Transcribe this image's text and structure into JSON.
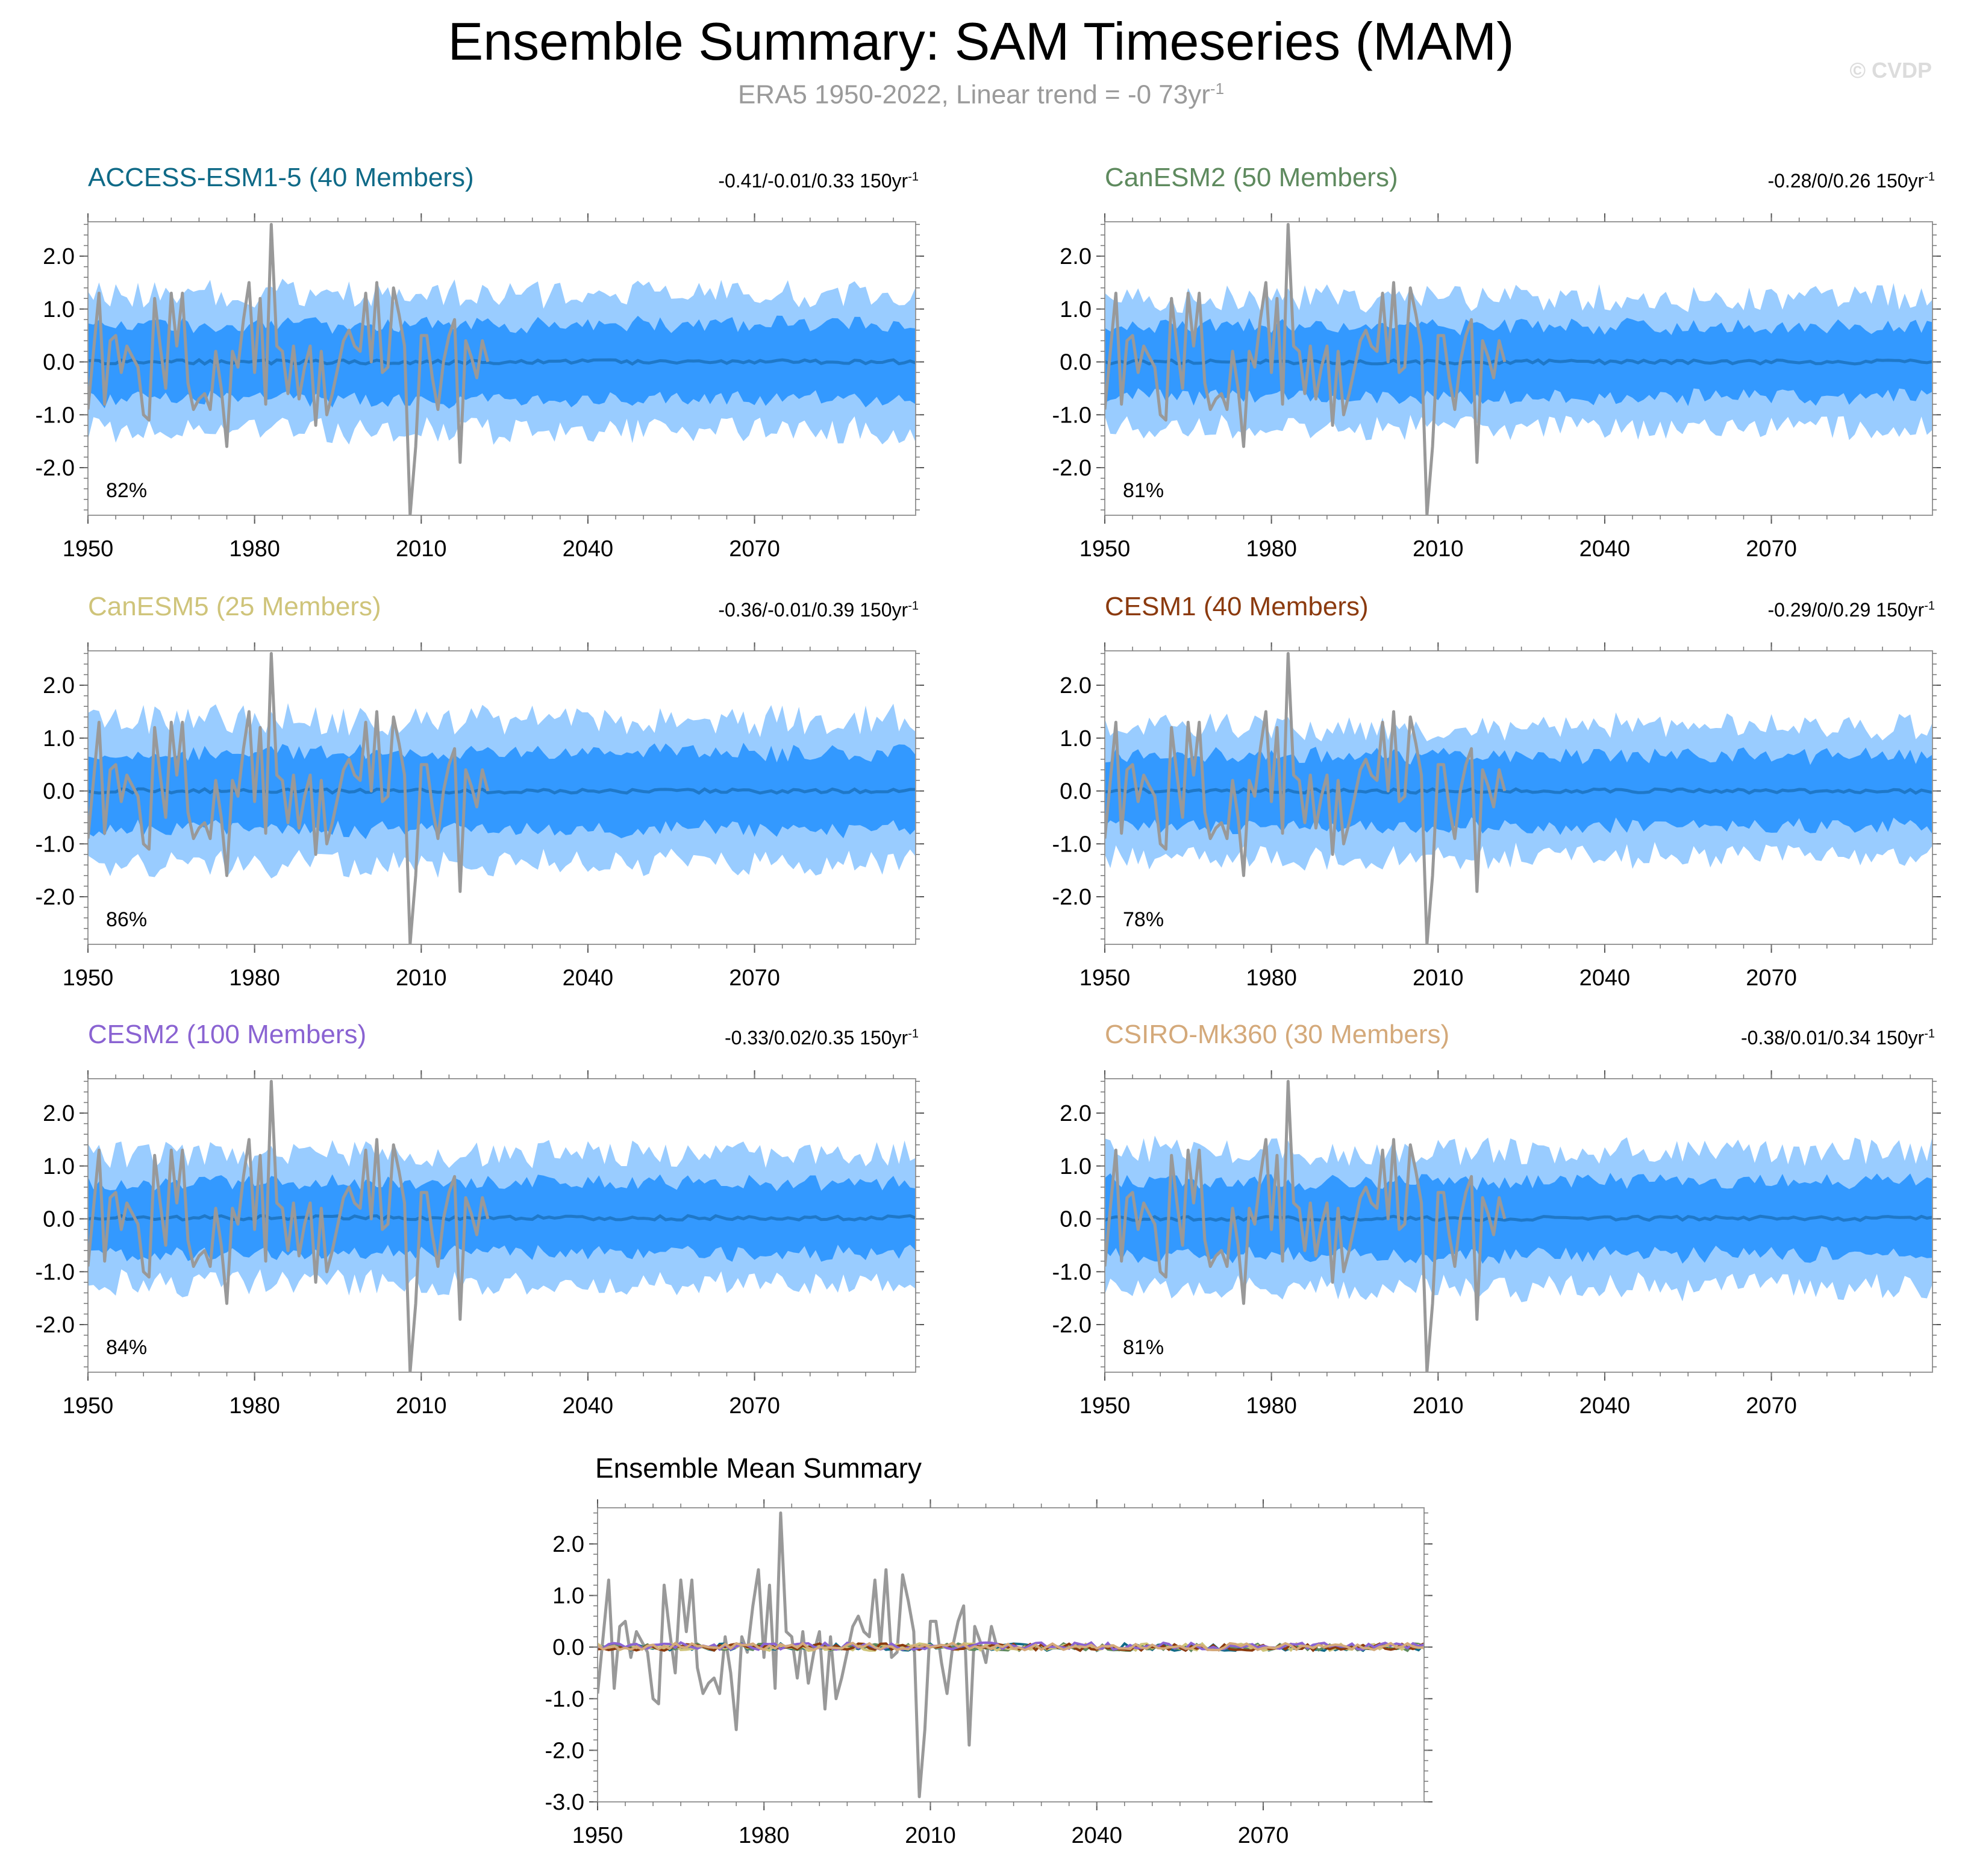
{
  "title": "Ensemble Summary: SAM Timeseries (MAM)",
  "subtitle_main": "ERA5 1950-2022, Linear trend = -0 73yr",
  "subtitle_sup": "-1",
  "watermark": "© CVDP",
  "colors": {
    "outer_band": "#99ccff",
    "inner_band": "#3399ff",
    "ensemble_mean": "#1f78c8",
    "observations": "#999999"
  },
  "x_ticks": [
    "1950",
    "1980",
    "2010",
    "2040",
    "2070"
  ],
  "y_ticks": [
    "2.0",
    "1.0",
    "0.0",
    "-1.0",
    "-2.0"
  ],
  "summary_y_ticks": [
    "2.0",
    "1.0",
    "0.0",
    "-1.0",
    "-2.0",
    "-3.0"
  ],
  "panels": [
    {
      "model": "ACCESS-ESM1-5 (40 Members)",
      "color": "#0f6a87",
      "stats": "-0.41/-0.01/0.33 150yr",
      "stats_sup": "-1",
      "percent": "82%",
      "width_factor": 1.0
    },
    {
      "model": "CanESM2 (50 Members)",
      "color": "#5e8a5e",
      "stats": "-0.28/0/0.26 150yr",
      "stats_sup": "-1",
      "percent": "81%",
      "width_factor": 0.95
    },
    {
      "model": "CanESM5 (25 Members)",
      "color": "#cfc47a",
      "stats": "-0.36/-0.01/0.39 150yr",
      "stats_sup": "-1",
      "percent": "86%",
      "width_factor": 1.05
    },
    {
      "model": "CESM1 (40 Members)",
      "color": "#8b3a0e",
      "stats": "-0.29/0/0.29 150yr",
      "stats_sup": "-1",
      "percent": "78%",
      "width_factor": 0.95
    },
    {
      "model": "CESM2 (100 Members)",
      "color": "#8a63d2",
      "stats": "-0.33/0.02/0.35 150yr",
      "stats_sup": "-1",
      "percent": "84%",
      "width_factor": 0.95
    },
    {
      "model": "CSIRO-Mk360 (30 Members)",
      "color": "#d4a97a",
      "stats": "-0.38/0.01/0.34 150yr",
      "stats_sup": "-1",
      "percent": "81%",
      "width_factor": 1.0
    }
  ],
  "summary": {
    "title": "Ensemble Mean Summary"
  },
  "chart_data": {
    "type": "area",
    "title": "Ensemble Summary: SAM Timeseries (MAM)",
    "x_range": [
      1950,
      2099
    ],
    "ylim": [
      -2.9,
      2.65
    ],
    "summary_ylim": [
      -3.0,
      2.7
    ],
    "observations": {
      "name": "ERA5",
      "x": [
        1950,
        1951,
        1952,
        1953,
        1954,
        1955,
        1956,
        1957,
        1958,
        1959,
        1960,
        1961,
        1962,
        1963,
        1964,
        1965,
        1966,
        1967,
        1968,
        1969,
        1970,
        1971,
        1972,
        1973,
        1974,
        1975,
        1976,
        1977,
        1978,
        1979,
        1980,
        1981,
        1982,
        1983,
        1984,
        1985,
        1986,
        1987,
        1988,
        1989,
        1990,
        1991,
        1992,
        1993,
        1994,
        1995,
        1996,
        1997,
        1998,
        1999,
        2000,
        2001,
        2002,
        2003,
        2004,
        2005,
        2006,
        2007,
        2008,
        2009,
        2010,
        2011,
        2012,
        2013,
        2014,
        2015,
        2016,
        2017,
        2018,
        2019,
        2020,
        2021,
        2022
      ],
      "values": [
        -0.9,
        0.2,
        1.3,
        -0.8,
        0.4,
        0.5,
        -0.2,
        0.3,
        0.1,
        -0.1,
        -1.0,
        -1.1,
        1.2,
        0.3,
        -0.5,
        1.3,
        0.3,
        1.3,
        -0.4,
        -0.9,
        -0.7,
        -0.6,
        -0.9,
        0.2,
        -0.5,
        -1.6,
        0.2,
        -0.1,
        0.8,
        1.5,
        -0.2,
        1.2,
        -0.8,
        2.6,
        0.3,
        0.2,
        -0.6,
        0.3,
        -0.7,
        -0.1,
        0.3,
        -1.2,
        0.2,
        -1.0,
        -0.6,
        -0.1,
        0.4,
        0.6,
        0.3,
        0.2,
        1.3,
        0.0,
        1.5,
        -0.2,
        -0.1,
        1.4,
        0.9,
        0.3,
        -2.9,
        -1.6,
        0.5,
        0.5,
        -0.3,
        -0.9,
        0.0,
        0.5,
        0.8,
        -1.9,
        0.4,
        0.1,
        -0.3,
        0.4,
        0.0
      ]
    },
    "band_profile": {
      "description": "model ensemble envelopes (outer = min/max, inner = 10-90%) drawn around each ensemble mean",
      "outer_halfwidth": 1.25,
      "inner_halfwidth": 0.7
    },
    "series": [
      {
        "name": "ACCESS-ESM1-5",
        "mean_level": 0.0
      },
      {
        "name": "CanESM2",
        "mean_level": 0.0
      },
      {
        "name": "CanESM5",
        "mean_level": 0.0
      },
      {
        "name": "CESM1",
        "mean_level": 0.0
      },
      {
        "name": "CESM2",
        "mean_level": 0.02
      },
      {
        "name": "CSIRO-Mk360",
        "mean_level": 0.01
      }
    ]
  }
}
